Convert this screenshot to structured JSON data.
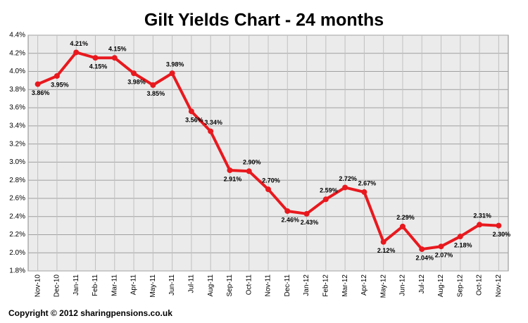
{
  "chart_data": {
    "type": "line",
    "title": "Gilt Yields Chart - 24 months",
    "categories": [
      "Nov-10",
      "Dec-10",
      "Jan-11",
      "Feb-11",
      "Mar-11",
      "Apr-11",
      "May-11",
      "Jun-11",
      "Jul-11",
      "Aug-11",
      "Sep-11",
      "Oct-11",
      "Nov-11",
      "Dec-11",
      "Jan-12",
      "Feb-12",
      "Mar-12",
      "Apr-12",
      "May-12",
      "Jun-12",
      "Jul-12",
      "Aug-12",
      "Sep-12",
      "Oct-12",
      "Nov-12"
    ],
    "values": [
      3.86,
      3.95,
      4.21,
      4.15,
      4.15,
      3.98,
      3.85,
      3.98,
      3.56,
      3.34,
      2.91,
      2.9,
      2.7,
      2.46,
      2.43,
      2.59,
      2.72,
      2.67,
      2.12,
      2.29,
      2.04,
      2.07,
      2.18,
      2.31,
      2.3
    ],
    "value_labels": [
      "3.86%",
      "3.95%",
      "4.21%",
      "4.15%",
      "4.15%",
      "3.98%",
      "3.85%",
      "3.98%",
      "3.56%",
      "3.34%",
      "2.91%",
      "2.90%",
      "2.70%",
      "2.46%",
      "2.43%",
      "2.59%",
      "2.72%",
      "2.67%",
      "2.12%",
      "2.29%",
      "2.04%",
      "2.07%",
      "2.18%",
      "2.31%",
      "2.30%"
    ],
    "color": "#e8191e",
    "ylim": [
      1.8,
      4.4
    ],
    "yticks": [
      {
        "value": 1.8,
        "label": "1.8%"
      },
      {
        "value": 2.0,
        "label": "2.0%"
      },
      {
        "value": 2.2,
        "label": "2.2%"
      },
      {
        "value": 2.4,
        "label": "2.4%"
      },
      {
        "value": 2.6,
        "label": "2.6%"
      },
      {
        "value": 2.8,
        "label": "2.8%"
      },
      {
        "value": 3.0,
        "label": "3.0%"
      },
      {
        "value": 3.2,
        "label": "3.2%"
      },
      {
        "value": 3.4,
        "label": "3.4%"
      },
      {
        "value": 3.6,
        "label": "3.6%"
      },
      {
        "value": 3.8,
        "label": "3.8%"
      },
      {
        "value": 4.0,
        "label": "4.0%"
      },
      {
        "value": 4.2,
        "label": "4.2%"
      },
      {
        "value": 4.4,
        "label": "4.4%"
      }
    ],
    "grid": true
  },
  "footer": "Copyright © 2012 sharingpensions.co.uk"
}
